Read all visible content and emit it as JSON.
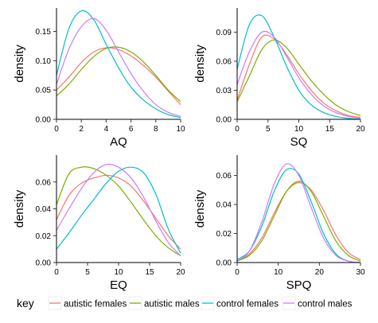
{
  "colors": {
    "autistic females": "#F8766D",
    "autistic males": "#7CAE00",
    "control females": "#00BFC4",
    "control males": "#C77CFF"
  },
  "legend": {
    "title": "key",
    "items": [
      "autistic females",
      "autistic males",
      "control females",
      "control males"
    ]
  },
  "chart_data": [
    {
      "type": "line",
      "xlabel": "AQ",
      "ylabel": "density",
      "xlim": [
        0,
        10
      ],
      "ylim": [
        0,
        0.19
      ],
      "xticks": [
        "0",
        "2",
        "4",
        "6",
        "8",
        "10"
      ],
      "yticks": [
        "0.00",
        "0.05",
        "0.10",
        "0.15"
      ],
      "x": [
        0,
        1,
        2,
        3,
        4,
        5,
        6,
        7,
        8,
        9,
        10
      ],
      "series": [
        {
          "name": "autistic females",
          "values": [
            0.05,
            0.072,
            0.097,
            0.115,
            0.122,
            0.119,
            0.108,
            0.092,
            0.072,
            0.048,
            0.025
          ]
        },
        {
          "name": "autistic males",
          "values": [
            0.04,
            0.06,
            0.085,
            0.107,
            0.121,
            0.123,
            0.115,
            0.098,
            0.075,
            0.05,
            0.03
          ]
        },
        {
          "name": "control females",
          "values": [
            0.075,
            0.155,
            0.185,
            0.17,
            0.128,
            0.088,
            0.055,
            0.033,
            0.018,
            0.008,
            0.003
          ]
        },
        {
          "name": "control males",
          "values": [
            0.06,
            0.12,
            0.158,
            0.172,
            0.152,
            0.115,
            0.078,
            0.048,
            0.025,
            0.012,
            0.005
          ]
        }
      ]
    },
    {
      "type": "line",
      "xlabel": "SQ",
      "ylabel": "density",
      "xlim": [
        0,
        20
      ],
      "ylim": [
        0,
        0.115
      ],
      "xticks": [
        "0",
        "5",
        "10",
        "15",
        "20"
      ],
      "yticks": [
        "0.00",
        "0.03",
        "0.06",
        "0.09"
      ],
      "x": [
        0,
        2,
        4,
        6,
        8,
        10,
        12,
        14,
        16,
        18,
        20
      ],
      "series": [
        {
          "name": "autistic females",
          "values": [
            0.02,
            0.057,
            0.085,
            0.083,
            0.067,
            0.047,
            0.03,
            0.017,
            0.009,
            0.004,
            0.002
          ]
        },
        {
          "name": "autistic males",
          "values": [
            0.018,
            0.045,
            0.072,
            0.082,
            0.074,
            0.057,
            0.04,
            0.026,
            0.015,
            0.008,
            0.004
          ]
        },
        {
          "name": "control females",
          "values": [
            0.052,
            0.098,
            0.107,
            0.085,
            0.055,
            0.03,
            0.015,
            0.007,
            0.003,
            0.001,
            0.0
          ]
        },
        {
          "name": "control males",
          "values": [
            0.036,
            0.07,
            0.09,
            0.085,
            0.065,
            0.043,
            0.026,
            0.014,
            0.007,
            0.003,
            0.001
          ]
        }
      ]
    },
    {
      "type": "line",
      "xlabel": "EQ",
      "ylabel": "density",
      "xlim": [
        0,
        20
      ],
      "ylim": [
        0,
        0.08
      ],
      "xticks": [
        "0",
        "5",
        "10",
        "15",
        "20"
      ],
      "yticks": [
        "0.00",
        "0.02",
        "0.04",
        "0.06"
      ],
      "x": [
        0,
        2,
        4,
        6,
        8,
        10,
        12,
        14,
        16,
        18,
        20
      ],
      "series": [
        {
          "name": "autistic females",
          "values": [
            0.032,
            0.05,
            0.059,
            0.063,
            0.065,
            0.063,
            0.057,
            0.046,
            0.033,
            0.02,
            0.01
          ]
        },
        {
          "name": "autistic males",
          "values": [
            0.043,
            0.066,
            0.071,
            0.07,
            0.065,
            0.057,
            0.045,
            0.032,
            0.02,
            0.011,
            0.005
          ]
        },
        {
          "name": "control females",
          "values": [
            0.01,
            0.022,
            0.035,
            0.047,
            0.059,
            0.068,
            0.071,
            0.067,
            0.051,
            0.025,
            0.007
          ]
        },
        {
          "name": "control males",
          "values": [
            0.024,
            0.04,
            0.055,
            0.067,
            0.073,
            0.071,
            0.063,
            0.049,
            0.031,
            0.015,
            0.005
          ]
        }
      ]
    },
    {
      "type": "line",
      "xlabel": "SPQ",
      "ylabel": "density",
      "xlim": [
        0,
        30
      ],
      "ylim": [
        0,
        0.074
      ],
      "xticks": [
        "0",
        "10",
        "20",
        "30"
      ],
      "yticks": [
        "0.00",
        "0.02",
        "0.04",
        "0.06"
      ],
      "x": [
        0,
        3,
        6,
        9,
        12,
        15,
        18,
        21,
        24,
        27,
        30
      ],
      "series": [
        {
          "name": "autistic females",
          "values": [
            0.001,
            0.006,
            0.017,
            0.034,
            0.049,
            0.055,
            0.05,
            0.036,
            0.019,
            0.007,
            0.002
          ]
        },
        {
          "name": "autistic males",
          "values": [
            0.001,
            0.005,
            0.015,
            0.032,
            0.049,
            0.056,
            0.049,
            0.032,
            0.015,
            0.005,
            0.001
          ]
        },
        {
          "name": "control females",
          "values": [
            0.002,
            0.008,
            0.025,
            0.049,
            0.064,
            0.061,
            0.042,
            0.02,
            0.006,
            0.001,
            0.0
          ]
        },
        {
          "name": "control males",
          "values": [
            0.001,
            0.008,
            0.028,
            0.054,
            0.068,
            0.06,
            0.038,
            0.017,
            0.005,
            0.001,
            0.0
          ]
        }
      ]
    }
  ]
}
